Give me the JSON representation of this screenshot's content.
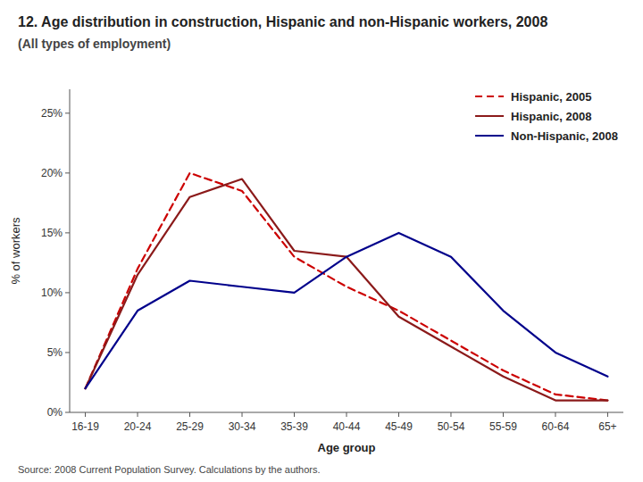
{
  "chart_data": {
    "type": "line",
    "title": "12. Age distribution in construction, Hispanic and non-Hispanic workers, 2008",
    "subtitle": "(All types of employment)",
    "annotations": [
      "Source: 2008 Current Population Survey. Calculations by the authors."
    ],
    "x_label": "Age group",
    "y_label": "% of workers",
    "categories": [
      "16-19",
      "20-24",
      "25-29",
      "30-34",
      "35-39",
      "40-44",
      "45-49",
      "50-54",
      "55-59",
      "60-64",
      "65+"
    ],
    "series": [
      {
        "name": "Hispanic, 2005",
        "color": "#cc0000",
        "line_style": "dashed",
        "values": [
          2.0,
          12.0,
          20.0,
          18.5,
          13.0,
          10.5,
          8.5,
          6.0,
          3.5,
          1.5,
          1.0
        ]
      },
      {
        "name": "Hispanic, 2008",
        "color": "#8b1a1a",
        "line_style": "solid",
        "values": [
          2.0,
          11.5,
          18.0,
          19.5,
          13.5,
          13.0,
          8.0,
          5.5,
          3.0,
          1.0,
          1.0
        ]
      },
      {
        "name": "Non-Hispanic, 2008",
        "color": "#00008b",
        "line_style": "solid",
        "values": [
          2.0,
          8.5,
          11.0,
          10.5,
          10.0,
          13.0,
          15.0,
          13.0,
          8.5,
          5.0,
          3.0
        ]
      }
    ],
    "ylim": [
      0,
      27
    ],
    "yticks": [
      {
        "value": 0,
        "label": "0%"
      },
      {
        "value": 5,
        "label": "5%"
      },
      {
        "value": 10,
        "label": "10%"
      },
      {
        "value": 15,
        "label": "15%"
      },
      {
        "value": 20,
        "label": "20%"
      },
      {
        "value": 25,
        "label": "25%"
      }
    ],
    "grid": false,
    "legend": "upper right"
  }
}
